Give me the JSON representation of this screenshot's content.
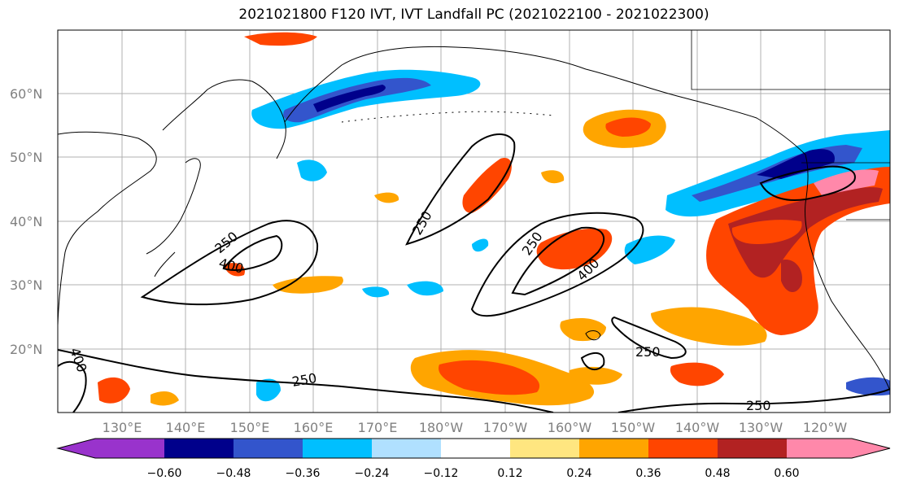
{
  "title": "2021021800 F120 IVT, IVT Landfall PC (2021022100 - 2021022300)",
  "lat_labels": [
    "60°N",
    "50°N",
    "40°N",
    "30°N",
    "20°N"
  ],
  "lon_labels": [
    "130°E",
    "140°E",
    "150°E",
    "160°E",
    "170°E",
    "180°W",
    "170°W",
    "160°W",
    "150°W",
    "140°W",
    "130°W",
    "120°W"
  ],
  "contour_labels": [
    "250",
    "400",
    "250",
    "250",
    "400",
    "250",
    "250",
    "250",
    "400"
  ],
  "colorbar": {
    "ticks": [
      "−0.60",
      "−0.48",
      "−0.36",
      "−0.24",
      "−0.12",
      "0.12",
      "0.24",
      "0.36",
      "0.48",
      "0.60"
    ],
    "colors": [
      "#9933cc",
      "#00008b",
      "#3355cc",
      "#00bfff",
      "#b0e0ff",
      "#ffffff",
      "#ffe680",
      "#ffa500",
      "#ff4500",
      "#b22222",
      "#ff88aa"
    ]
  }
}
